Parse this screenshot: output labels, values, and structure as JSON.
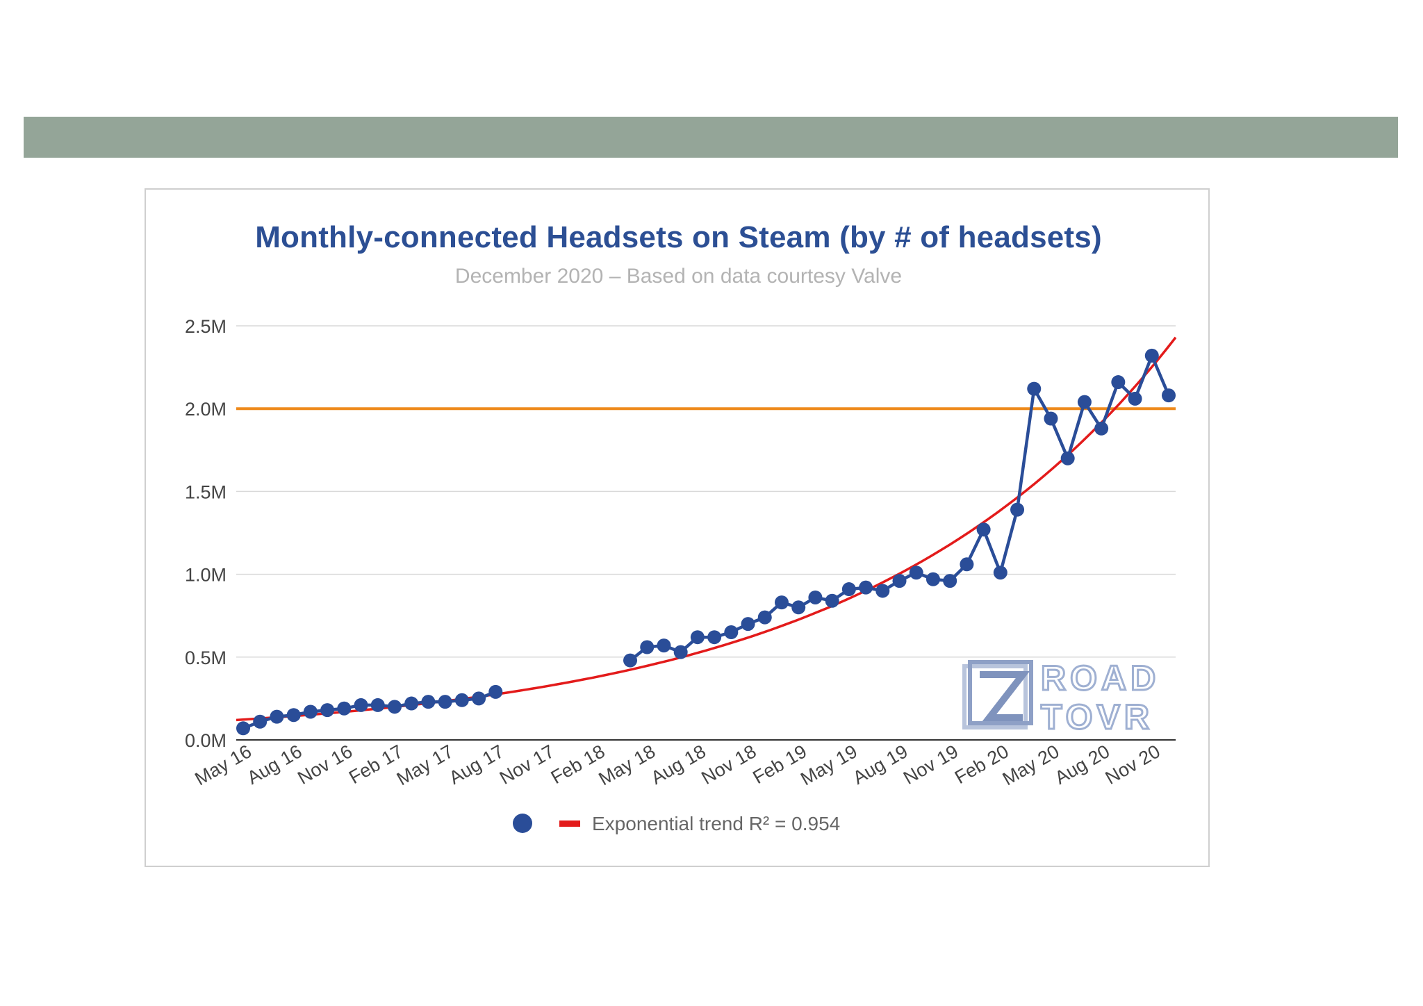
{
  "band": {
    "color": "#94a598"
  },
  "chart_data": {
    "type": "line",
    "title": "Monthly-connected Headsets on Steam (by # of headsets)",
    "subtitle": "December 2020 – Based on data courtesy Valve",
    "xlabel": "",
    "ylabel": "",
    "ylim": [
      0,
      2500000
    ],
    "yticks": [
      {
        "value": 0,
        "label": "0.0M"
      },
      {
        "value": 500000,
        "label": "0.5M"
      },
      {
        "value": 1000000,
        "label": "1.0M"
      },
      {
        "value": 1500000,
        "label": "1.5M"
      },
      {
        "value": 2000000,
        "label": "2.0M"
      },
      {
        "value": 2500000,
        "label": "2.5M"
      }
    ],
    "xticks": [
      "May 16",
      "Aug 16",
      "Nov 16",
      "Feb 17",
      "May 17",
      "Aug 17",
      "Nov 17",
      "Feb 18",
      "May 18",
      "Aug 18",
      "Nov 18",
      "Feb 19",
      "May 19",
      "Aug 19",
      "Nov 19",
      "Feb 20",
      "May 20",
      "Aug 20",
      "Nov 20"
    ],
    "grid": true,
    "legend_position": "bottom",
    "series": [
      {
        "name": "",
        "color": "#2a4d98",
        "segments": [
          {
            "start": "May 16",
            "values": [
              70000,
              110000,
              140000,
              150000,
              170000,
              180000,
              190000,
              210000,
              210000,
              200000,
              220000,
              230000,
              230000,
              240000,
              250000,
              290000
            ]
          },
          {
            "start": "Apr 18",
            "values": [
              480000,
              560000,
              570000,
              530000,
              620000,
              620000,
              650000,
              700000,
              740000,
              830000,
              800000,
              860000,
              840000,
              910000,
              920000,
              900000,
              960000,
              1010000,
              970000,
              960000,
              1060000,
              1270000,
              1010000,
              1390000,
              2120000,
              1940000,
              1700000,
              2040000,
              1880000,
              2160000,
              2060000,
              2320000,
              2080000
            ]
          }
        ]
      },
      {
        "name": "Exponential trend R² = 0.954",
        "color": "#e31b1b",
        "trend": {
          "type": "exponential",
          "start_value": 120000,
          "end_value": 2430000
        }
      }
    ],
    "reference_line": {
      "value": 2000000,
      "color": "#ee8a1c"
    },
    "legend": [
      {
        "marker": "circle",
        "color": "#2a4d98",
        "label": ""
      },
      {
        "marker": "line",
        "color": "#e31b1b",
        "label": "Exponential trend R² = 0.954"
      }
    ],
    "watermark": {
      "line1": "ROAD",
      "line2": "TOVR"
    }
  }
}
